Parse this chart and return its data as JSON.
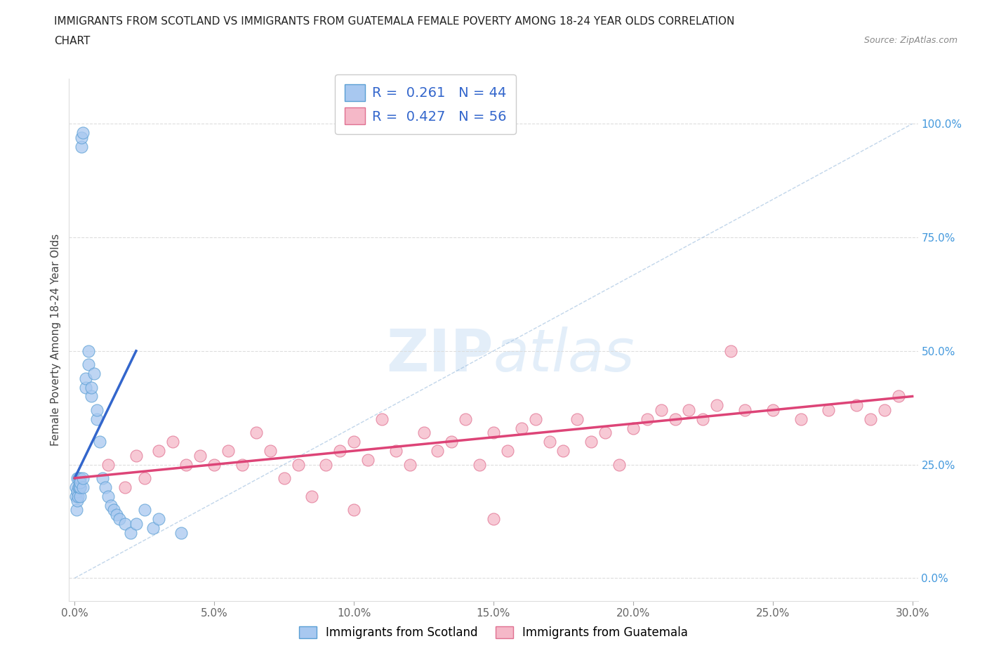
{
  "title_line1": "IMMIGRANTS FROM SCOTLAND VS IMMIGRANTS FROM GUATEMALA FEMALE POVERTY AMONG 18-24 YEAR OLDS CORRELATION",
  "title_line2": "CHART",
  "source_text": "Source: ZipAtlas.com",
  "ylabel": "Female Poverty Among 18-24 Year Olds",
  "xlim": [
    -0.002,
    0.302
  ],
  "ylim": [
    -0.05,
    1.1
  ],
  "xticks": [
    0.0,
    0.05,
    0.1,
    0.15,
    0.2,
    0.25,
    0.3
  ],
  "xticklabels": [
    "0.0%",
    "5.0%",
    "10.0%",
    "15.0%",
    "20.0%",
    "25.0%",
    "30.0%"
  ],
  "yticks": [
    0.0,
    0.25,
    0.5,
    0.75,
    1.0
  ],
  "yticklabels": [
    "0.0%",
    "25.0%",
    "50.0%",
    "75.0%",
    "100.0%"
  ],
  "scotland_color": "#a8c8f0",
  "scotland_edge_color": "#5a9fd4",
  "guatemala_color": "#f5b8c8",
  "guatemala_edge_color": "#e07090",
  "regression_scotland_color": "#3366cc",
  "regression_guatemala_color": "#dd4477",
  "watermark_color": "#c8dff5",
  "legend_r_scotland": "0.261",
  "legend_n_scotland": "44",
  "legend_r_guatemala": "0.427",
  "legend_n_guatemala": "56",
  "legend_label_scotland": "Immigrants from Scotland",
  "legend_label_guatemala": "Immigrants from Guatemala",
  "sc_x": [
    0.0003,
    0.0005,
    0.0006,
    0.0008,
    0.001,
    0.001,
    0.0012,
    0.0013,
    0.0015,
    0.0015,
    0.0018,
    0.002,
    0.002,
    0.002,
    0.002,
    0.0025,
    0.0025,
    0.003,
    0.003,
    0.003,
    0.004,
    0.004,
    0.005,
    0.005,
    0.006,
    0.006,
    0.007,
    0.008,
    0.008,
    0.009,
    0.01,
    0.011,
    0.012,
    0.013,
    0.014,
    0.015,
    0.016,
    0.018,
    0.02,
    0.022,
    0.025,
    0.028,
    0.03,
    0.038
  ],
  "sc_y": [
    0.2,
    0.18,
    0.15,
    0.17,
    0.19,
    0.22,
    0.18,
    0.2,
    0.22,
    0.2,
    0.2,
    0.18,
    0.2,
    0.22,
    0.21,
    0.95,
    0.97,
    0.98,
    0.2,
    0.22,
    0.42,
    0.44,
    0.47,
    0.5,
    0.4,
    0.42,
    0.45,
    0.35,
    0.37,
    0.3,
    0.22,
    0.2,
    0.18,
    0.16,
    0.15,
    0.14,
    0.13,
    0.12,
    0.1,
    0.12,
    0.15,
    0.11,
    0.13,
    0.1
  ],
  "gt_x": [
    0.012,
    0.018,
    0.022,
    0.025,
    0.03,
    0.035,
    0.04,
    0.045,
    0.05,
    0.055,
    0.06,
    0.065,
    0.07,
    0.075,
    0.08,
    0.085,
    0.09,
    0.095,
    0.1,
    0.105,
    0.11,
    0.115,
    0.12,
    0.125,
    0.13,
    0.135,
    0.14,
    0.145,
    0.15,
    0.155,
    0.16,
    0.165,
    0.17,
    0.175,
    0.18,
    0.185,
    0.19,
    0.195,
    0.2,
    0.205,
    0.21,
    0.215,
    0.22,
    0.225,
    0.23,
    0.235,
    0.24,
    0.25,
    0.26,
    0.27,
    0.28,
    0.285,
    0.29,
    0.295,
    0.1,
    0.15
  ],
  "gt_y": [
    0.25,
    0.2,
    0.27,
    0.22,
    0.28,
    0.3,
    0.25,
    0.27,
    0.25,
    0.28,
    0.25,
    0.32,
    0.28,
    0.22,
    0.25,
    0.18,
    0.25,
    0.28,
    0.3,
    0.26,
    0.35,
    0.28,
    0.25,
    0.32,
    0.28,
    0.3,
    0.35,
    0.25,
    0.32,
    0.28,
    0.33,
    0.35,
    0.3,
    0.28,
    0.35,
    0.3,
    0.32,
    0.25,
    0.33,
    0.35,
    0.37,
    0.35,
    0.37,
    0.35,
    0.38,
    0.5,
    0.37,
    0.37,
    0.35,
    0.37,
    0.38,
    0.35,
    0.37,
    0.4,
    0.15,
    0.13
  ],
  "sc_regline_x": [
    0.0,
    0.022
  ],
  "sc_regline_y": [
    0.22,
    0.5
  ],
  "gt_regline_x": [
    0.0,
    0.3
  ],
  "gt_regline_y": [
    0.22,
    0.4
  ]
}
